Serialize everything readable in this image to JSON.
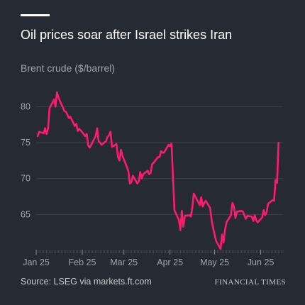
{
  "title": "Oil prices soar after Israel strikes Iran",
  "subtitle": "Brent crude ($/barrel)",
  "source": "Source: LSEG via markets.ft.com",
  "brand": "FINANCIAL TIMES",
  "colors": {
    "background": "#262a33",
    "line": "#ff1a6e",
    "grid": "#3d424c",
    "tick_text": "#9fa3aa"
  },
  "chart_data": {
    "type": "line",
    "title": "Oil prices soar after Israel strikes Iran",
    "ylabel": "Brent crude ($/barrel)",
    "xlabel": "",
    "ylim": [
      60,
      83
    ],
    "xlim": [
      "2025-01-01",
      "2025-06-16"
    ],
    "yticks": [
      65,
      70,
      75,
      80
    ],
    "xticks": [
      {
        "date": "2025-01-01",
        "label": "Jan 25"
      },
      {
        "date": "2025-02-01",
        "label": "Feb 25"
      },
      {
        "date": "2025-03-01",
        "label": "Mar 25"
      },
      {
        "date": "2025-04-01",
        "label": "Apr 25"
      },
      {
        "date": "2025-05-01",
        "label": "May 25"
      },
      {
        "date": "2025-06-01",
        "label": "Jun 25"
      }
    ],
    "grid": "horizontal",
    "series": [
      {
        "values": [
          [
            "2025-01-02",
            75.9
          ],
          [
            "2025-01-03",
            76.5
          ],
          [
            "2025-01-06",
            76.3
          ],
          [
            "2025-01-07",
            77.0
          ],
          [
            "2025-01-08",
            76.2
          ],
          [
            "2025-01-09",
            77.0
          ],
          [
            "2025-01-10",
            79.8
          ],
          [
            "2025-01-13",
            81.0
          ],
          [
            "2025-01-14",
            80.0
          ],
          [
            "2025-01-15",
            82.0
          ],
          [
            "2025-01-16",
            81.3
          ],
          [
            "2025-01-17",
            80.8
          ],
          [
            "2025-01-20",
            79.4
          ],
          [
            "2025-01-21",
            79.3
          ],
          [
            "2025-01-22",
            78.9
          ],
          [
            "2025-01-23",
            78.4
          ],
          [
            "2025-01-24",
            78.6
          ],
          [
            "2025-01-27",
            77.3
          ],
          [
            "2025-01-28",
            77.6
          ],
          [
            "2025-01-29",
            76.6
          ],
          [
            "2025-01-30",
            76.9
          ],
          [
            "2025-01-31",
            76.7
          ],
          [
            "2025-02-03",
            75.9
          ],
          [
            "2025-02-04",
            76.2
          ],
          [
            "2025-02-05",
            74.6
          ],
          [
            "2025-02-06",
            74.3
          ],
          [
            "2025-02-07",
            74.7
          ],
          [
            "2025-02-10",
            75.9
          ],
          [
            "2025-02-11",
            77.0
          ],
          [
            "2025-02-12",
            75.2
          ],
          [
            "2025-02-13",
            75.0
          ],
          [
            "2025-02-14",
            74.7
          ],
          [
            "2025-02-17",
            75.2
          ],
          [
            "2025-02-18",
            75.8
          ],
          [
            "2025-02-19",
            76.0
          ],
          [
            "2025-02-20",
            76.5
          ],
          [
            "2025-02-21",
            74.4
          ],
          [
            "2025-02-24",
            74.8
          ],
          [
            "2025-02-25",
            73.0
          ],
          [
            "2025-02-26",
            72.5
          ],
          [
            "2025-02-27",
            74.0
          ],
          [
            "2025-02-28",
            73.2
          ],
          [
            "2025-03-03",
            71.6
          ],
          [
            "2025-03-04",
            71.0
          ],
          [
            "2025-03-05",
            69.3
          ],
          [
            "2025-03-06",
            69.5
          ],
          [
            "2025-03-07",
            70.4
          ],
          [
            "2025-03-10",
            69.3
          ],
          [
            "2025-03-11",
            69.6
          ],
          [
            "2025-03-12",
            70.9
          ],
          [
            "2025-03-13",
            70.0
          ],
          [
            "2025-03-14",
            70.6
          ],
          [
            "2025-03-17",
            71.1
          ],
          [
            "2025-03-18",
            70.6
          ],
          [
            "2025-03-19",
            70.8
          ],
          [
            "2025-03-20",
            72.0
          ],
          [
            "2025-03-21",
            72.2
          ],
          [
            "2025-03-24",
            73.0
          ],
          [
            "2025-03-25",
            73.0
          ],
          [
            "2025-03-26",
            73.8
          ],
          [
            "2025-03-27",
            73.6
          ],
          [
            "2025-03-28",
            73.6
          ],
          [
            "2025-03-31",
            74.7
          ],
          [
            "2025-04-01",
            74.5
          ],
          [
            "2025-04-02",
            74.9
          ],
          [
            "2025-04-03",
            70.1
          ],
          [
            "2025-04-04",
            65.6
          ],
          [
            "2025-04-07",
            64.2
          ],
          [
            "2025-04-08",
            62.8
          ],
          [
            "2025-04-09",
            65.5
          ],
          [
            "2025-04-10",
            63.3
          ],
          [
            "2025-04-11",
            64.8
          ],
          [
            "2025-04-14",
            64.9
          ],
          [
            "2025-04-15",
            64.7
          ],
          [
            "2025-04-16",
            65.9
          ],
          [
            "2025-04-17",
            67.9
          ],
          [
            "2025-04-21",
            66.3
          ],
          [
            "2025-04-22",
            67.4
          ],
          [
            "2025-04-23",
            66.1
          ],
          [
            "2025-04-24",
            66.6
          ],
          [
            "2025-04-25",
            66.9
          ],
          [
            "2025-04-28",
            65.9
          ],
          [
            "2025-04-29",
            64.2
          ],
          [
            "2025-04-30",
            63.1
          ],
          [
            "2025-05-02",
            61.3
          ],
          [
            "2025-05-05",
            60.2
          ],
          [
            "2025-05-06",
            62.2
          ],
          [
            "2025-05-07",
            61.1
          ],
          [
            "2025-05-08",
            62.8
          ],
          [
            "2025-05-09",
            63.9
          ],
          [
            "2025-05-12",
            64.9
          ],
          [
            "2025-05-13",
            66.6
          ],
          [
            "2025-05-14",
            66.1
          ],
          [
            "2025-05-15",
            64.5
          ],
          [
            "2025-05-16",
            65.4
          ],
          [
            "2025-05-19",
            65.5
          ],
          [
            "2025-05-20",
            65.4
          ],
          [
            "2025-05-21",
            64.9
          ],
          [
            "2025-05-22",
            64.4
          ],
          [
            "2025-05-23",
            64.8
          ],
          [
            "2025-05-26",
            64.7
          ],
          [
            "2025-05-27",
            64.1
          ],
          [
            "2025-05-28",
            64.9
          ],
          [
            "2025-05-29",
            64.2
          ],
          [
            "2025-05-30",
            63.9
          ],
          [
            "2025-06-02",
            64.6
          ],
          [
            "2025-06-03",
            65.6
          ],
          [
            "2025-06-04",
            64.9
          ],
          [
            "2025-06-05",
            65.3
          ],
          [
            "2025-06-06",
            66.5
          ],
          [
            "2025-06-09",
            67.0
          ],
          [
            "2025-06-10",
            66.9
          ],
          [
            "2025-06-11",
            69.8
          ],
          [
            "2025-06-12",
            69.4
          ],
          [
            "2025-06-13",
            75.0
          ]
        ]
      }
    ]
  }
}
